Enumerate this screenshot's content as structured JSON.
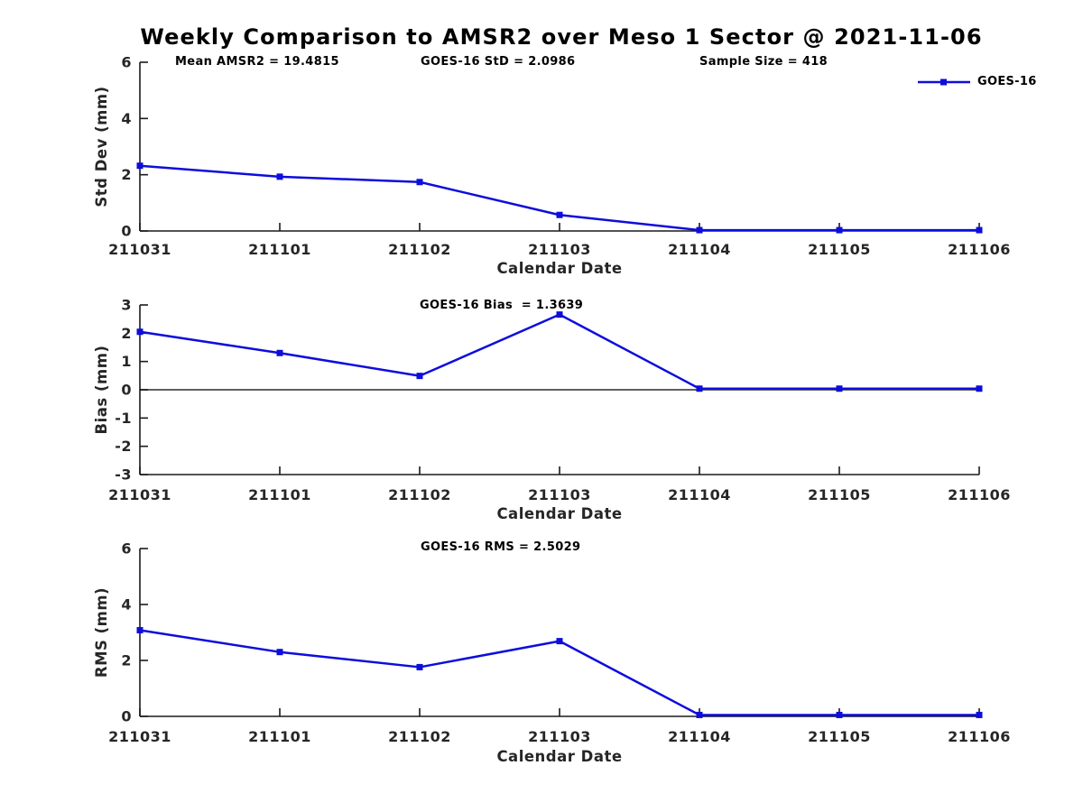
{
  "title": "Weekly Comparison to AMSR2 over Meso 1 Sector @ 2021-11-06",
  "legend": {
    "label": "GOES-16"
  },
  "colors": {
    "line": "#0d0ddc",
    "axis": "#1a1a1a",
    "text": "#262626",
    "title_text": "#000000",
    "zero_line": "#000000",
    "background": "#ffffff"
  },
  "chart_data": [
    {
      "type": "line",
      "name": "std-dev-subplot",
      "xlabel": "Calendar Date",
      "ylabel": "Std Dev (mm)",
      "categories": [
        "211031",
        "211101",
        "211102",
        "211103",
        "211104",
        "211105",
        "211106"
      ],
      "series": [
        {
          "name": "GOES-16",
          "values": [
            2.32,
            1.93,
            1.74,
            0.57,
            0.03,
            0.03,
            0.03
          ]
        }
      ],
      "ylim": [
        0,
        6
      ],
      "yticks": [
        0,
        2,
        4,
        6
      ],
      "grid": false,
      "zero_line": false,
      "marker": "square",
      "legend_position": "top-right",
      "annotations": [
        "Mean AMSR2 = 19.4815",
        "GOES-16 StD = 2.0986",
        "Sample Size = 418"
      ]
    },
    {
      "type": "line",
      "name": "bias-subplot",
      "xlabel": "Calendar Date",
      "ylabel": "Bias (mm)",
      "categories": [
        "211031",
        "211101",
        "211102",
        "211103",
        "211104",
        "211105",
        "211106"
      ],
      "series": [
        {
          "name": "GOES-16",
          "values": [
            2.05,
            1.3,
            0.49,
            2.66,
            0.04,
            0.04,
            0.04
          ]
        }
      ],
      "ylim": [
        -3,
        3
      ],
      "yticks": [
        -3,
        -2,
        -1,
        0,
        1,
        2,
        3
      ],
      "grid": false,
      "zero_line": true,
      "marker": "square",
      "annotations": [
        "GOES-16 Bias  = 1.3639"
      ]
    },
    {
      "type": "line",
      "name": "rms-subplot",
      "xlabel": "Calendar Date",
      "ylabel": "RMS (mm)",
      "categories": [
        "211031",
        "211101",
        "211102",
        "211103",
        "211104",
        "211105",
        "211106"
      ],
      "series": [
        {
          "name": "GOES-16",
          "values": [
            3.08,
            2.3,
            1.76,
            2.69,
            0.05,
            0.05,
            0.05
          ]
        }
      ],
      "ylim": [
        0,
        6
      ],
      "yticks": [
        0,
        2,
        4,
        6
      ],
      "grid": false,
      "zero_line": false,
      "marker": "square",
      "annotations": [
        "GOES-16 RMS = 2.5029"
      ]
    }
  ]
}
